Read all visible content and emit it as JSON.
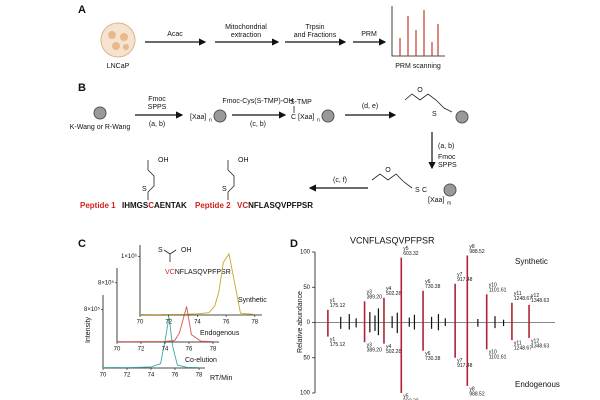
{
  "panel_a": {
    "label": "A",
    "cell": "LNCaP",
    "steps": [
      [
        "Acac"
      ],
      [
        "Mitochondrial",
        "extraction"
      ],
      [
        "Trpsin",
        "and Fractions"
      ],
      [
        "PRM"
      ]
    ],
    "result": "PRM scanning"
  },
  "panel_b": {
    "label": "B",
    "resin": "K-Wang or R-Wang",
    "spps": [
      "Fmoc",
      "SPPS"
    ],
    "ab": "(a, b)",
    "xaa": "[Xaa]",
    "n": "n",
    "m": "m",
    "cys": "Fmoc-Cys(S-TMP)-OH",
    "cb": "(c, b)",
    "stmp": "S-TMP",
    "c": "C",
    "de": "(d, e)",
    "cf": "(c, f)",
    "atoms": {
      "o": "O",
      "oh": "OH",
      "s": "S"
    },
    "peptides": [
      {
        "name": "Peptide 1",
        "sequence": [
          "IHMGS",
          "C",
          "AENTAK"
        ]
      },
      {
        "name": "Peptide 2",
        "sequence": [
          "VC",
          "NFLASQVPFPSR"
        ]
      }
    ]
  },
  "panel_c": {
    "label": "C",
    "x_label": "RT/Min",
    "y_label": "Intensity",
    "peptide": [
      "VC",
      "NFLASQVPFPSR"
    ],
    "xlim": [
      70,
      78.5
    ],
    "xticks": [
      70,
      72,
      74,
      76,
      78
    ],
    "x": [
      70,
      71,
      72,
      73,
      74,
      74.8,
      75.2,
      75.5,
      75.8,
      76.2,
      77,
      78
    ],
    "traces": [
      {
        "name": "Co-elution",
        "color": "#3aa99f",
        "ylim": [
          0,
          1000000
        ],
        "yticks": [
          {
            "value": 800000,
            "label": "8×10⁵"
          }
        ],
        "values": [
          5000,
          8000,
          6000,
          10000,
          15000,
          60000,
          400000,
          700000,
          300000,
          40000,
          10000,
          5000
        ]
      },
      {
        "name": "Endogenous",
        "color": "#d9534f",
        "ylim": [
          0,
          1000000
        ],
        "yticks": [
          {
            "value": 800000,
            "label": "8×10⁵"
          }
        ],
        "values": [
          5000,
          4000,
          6000,
          5000,
          8000,
          20000,
          120000,
          300000,
          480000,
          100000,
          10000,
          6000
        ]
      },
      {
        "name": "Synthetic",
        "color": "#c8a72a",
        "ylim": [
          0,
          1200000
        ],
        "yticks": [
          {
            "value": 1000000,
            "label": "1×10⁶"
          }
        ],
        "values": [
          10000,
          8000,
          10000,
          12000,
          20000,
          40000,
          150000,
          400000,
          900000,
          1050000,
          30000,
          10000
        ]
      }
    ]
  },
  "panel_d": {
    "label": "D",
    "sequence": "VCNFLASQVPFPSR",
    "y_label": "Relative abundance",
    "xlim": [
      100,
      1500
    ],
    "ylim": [
      -100,
      100
    ],
    "yticks": [
      100,
      50,
      0,
      {
        "value": -50,
        "label": "50"
      },
      {
        "value": -100,
        "label": "100"
      }
    ],
    "mz": [
      175.12,
      389.2,
      502.28,
      603.32,
      730.38,
      917.48,
      988.52,
      1101.61,
      1248.67,
      1348.63
    ],
    "labels": [
      [
        "y1",
        "175.12"
      ],
      [
        "y3",
        "389.20"
      ],
      [
        "y4",
        "502.28"
      ],
      [
        "y5",
        "603.32"
      ],
      [
        "y6",
        "730.38"
      ],
      [
        "y7",
        "917.48"
      ],
      [
        "y8",
        "988.52"
      ],
      [
        "y10",
        "1101.61"
      ],
      [
        "y11",
        "1248.67"
      ],
      [
        "y12",
        "1348.63"
      ]
    ],
    "other_mz": [
      250,
      300,
      340,
      420,
      450,
      470,
      550,
      580,
      650,
      680,
      780,
      820,
      860,
      1050,
      1150,
      1200
    ],
    "series": [
      {
        "name": "Synthetic",
        "color": "#c8a72a",
        "values": [
          18,
          30,
          35,
          92,
          45,
          55,
          95,
          40,
          28,
          25
        ],
        "other_values": [
          8,
          12,
          6,
          15,
          10,
          20,
          9,
          14,
          7,
          11,
          8,
          12,
          6,
          5,
          9,
          4
        ]
      },
      {
        "name": "Endogenous",
        "color": "#b22234",
        "values": [
          -20,
          -28,
          -30,
          -100,
          -40,
          -50,
          -90,
          -38,
          -25,
          -22
        ],
        "other_values": [
          -9,
          -10,
          -7,
          -14,
          -12,
          -18,
          -8,
          -15,
          -6,
          -10,
          -9,
          -11,
          -5,
          -6,
          -8,
          -5
        ]
      }
    ]
  }
}
